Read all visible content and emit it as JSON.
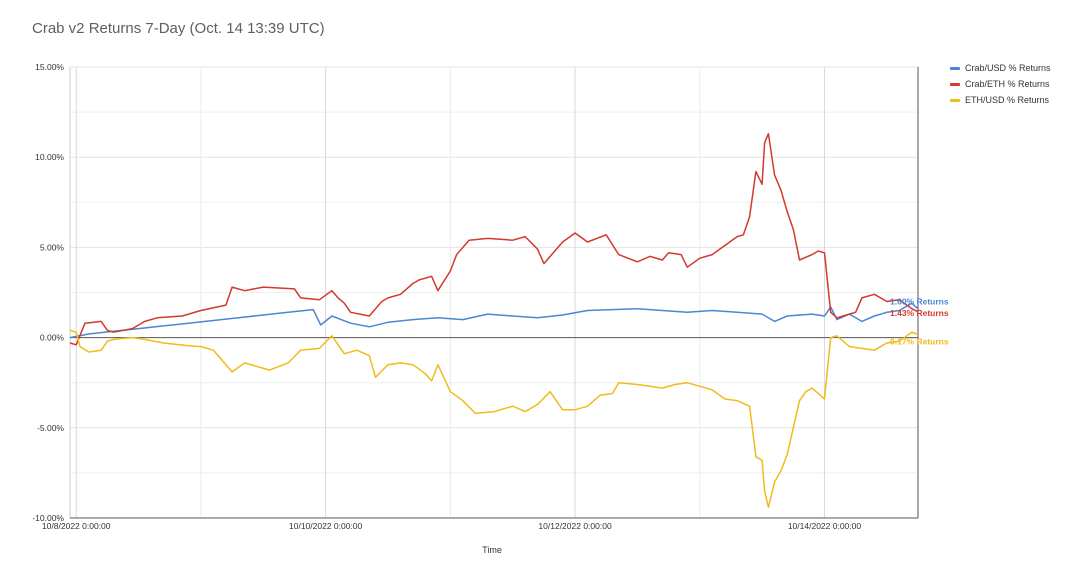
{
  "title": "Crab v2 Returns 7-Day (Oct. 14 13:39 UTC)",
  "chart_data": {
    "type": "line",
    "title": "Crab v2 Returns 7-Day (Oct. 14 13:39 UTC)",
    "xlabel": "Time",
    "ylabel": "",
    "x_range": [
      7.95,
      14.75
    ],
    "ylim": [
      -10,
      15
    ],
    "y_ticks": [
      15,
      10,
      5,
      0,
      -5,
      -10
    ],
    "y_tick_labels": [
      "15.00%",
      "10.00%",
      "5.00%",
      "0.00%",
      "-5.00%",
      "-10.00%"
    ],
    "x_ticks": [
      8,
      10,
      12,
      14
    ],
    "x_tick_labels": [
      "10/8/2022 0:00:00",
      "10/10/2022 0:00:00",
      "10/12/2022 0:00:00",
      "10/14/2022 0:00:00"
    ],
    "grid": true,
    "legend_position": "top-right",
    "series": [
      {
        "name": "Crab/USD % Returns",
        "color": "#4a86d4",
        "end_label": "1.60% Returns",
        "points": [
          [
            7.95,
            0.0
          ],
          [
            8.1,
            0.2
          ],
          [
            8.3,
            0.35
          ],
          [
            8.5,
            0.5
          ],
          [
            8.7,
            0.65
          ],
          [
            8.9,
            0.8
          ],
          [
            9.1,
            0.95
          ],
          [
            9.3,
            1.1
          ],
          [
            9.5,
            1.25
          ],
          [
            9.7,
            1.4
          ],
          [
            9.9,
            1.55
          ],
          [
            9.96,
            0.7
          ],
          [
            10.05,
            1.2
          ],
          [
            10.2,
            0.8
          ],
          [
            10.35,
            0.6
          ],
          [
            10.5,
            0.85
          ],
          [
            10.7,
            1.0
          ],
          [
            10.9,
            1.1
          ],
          [
            11.1,
            1.0
          ],
          [
            11.3,
            1.3
          ],
          [
            11.5,
            1.2
          ],
          [
            11.7,
            1.1
          ],
          [
            11.9,
            1.25
          ],
          [
            12.1,
            1.5
          ],
          [
            12.3,
            1.55
          ],
          [
            12.5,
            1.6
          ],
          [
            12.7,
            1.5
          ],
          [
            12.9,
            1.4
          ],
          [
            13.1,
            1.5
          ],
          [
            13.3,
            1.4
          ],
          [
            13.5,
            1.3
          ],
          [
            13.6,
            0.9
          ],
          [
            13.7,
            1.2
          ],
          [
            13.9,
            1.3
          ],
          [
            14.0,
            1.2
          ],
          [
            14.05,
            1.7
          ],
          [
            14.1,
            1.0
          ],
          [
            14.2,
            1.3
          ],
          [
            14.3,
            0.9
          ],
          [
            14.4,
            1.2
          ],
          [
            14.5,
            1.4
          ],
          [
            14.6,
            1.5
          ],
          [
            14.7,
            1.9
          ],
          [
            14.75,
            1.6
          ]
        ]
      },
      {
        "name": "Crab/ETH % Returns",
        "color": "#d2392f",
        "end_label": "1.43% Returns",
        "points": [
          [
            7.95,
            -0.3
          ],
          [
            8.0,
            -0.4
          ],
          [
            8.07,
            0.8
          ],
          [
            8.2,
            0.9
          ],
          [
            8.25,
            0.4
          ],
          [
            8.3,
            0.3
          ],
          [
            8.45,
            0.5
          ],
          [
            8.55,
            0.9
          ],
          [
            8.65,
            1.1
          ],
          [
            8.85,
            1.2
          ],
          [
            9.0,
            1.5
          ],
          [
            9.2,
            1.8
          ],
          [
            9.25,
            2.8
          ],
          [
            9.35,
            2.6
          ],
          [
            9.5,
            2.8
          ],
          [
            9.75,
            2.7
          ],
          [
            9.8,
            2.2
          ],
          [
            9.95,
            2.1
          ],
          [
            10.05,
            2.6
          ],
          [
            10.1,
            2.2
          ],
          [
            10.15,
            1.9
          ],
          [
            10.2,
            1.4
          ],
          [
            10.35,
            1.2
          ],
          [
            10.45,
            2.0
          ],
          [
            10.5,
            2.2
          ],
          [
            10.6,
            2.4
          ],
          [
            10.7,
            3.0
          ],
          [
            10.75,
            3.2
          ],
          [
            10.85,
            3.4
          ],
          [
            10.9,
            2.6
          ],
          [
            11.0,
            3.7
          ],
          [
            11.05,
            4.6
          ],
          [
            11.15,
            5.4
          ],
          [
            11.3,
            5.5
          ],
          [
            11.5,
            5.4
          ],
          [
            11.6,
            5.6
          ],
          [
            11.7,
            4.9
          ],
          [
            11.75,
            4.1
          ],
          [
            11.9,
            5.3
          ],
          [
            12.0,
            5.8
          ],
          [
            12.1,
            5.3
          ],
          [
            12.25,
            5.7
          ],
          [
            12.35,
            4.6
          ],
          [
            12.5,
            4.2
          ],
          [
            12.6,
            4.5
          ],
          [
            12.7,
            4.3
          ],
          [
            12.75,
            4.7
          ],
          [
            12.85,
            4.6
          ],
          [
            12.9,
            3.9
          ],
          [
            13.0,
            4.4
          ],
          [
            13.1,
            4.6
          ],
          [
            13.2,
            5.1
          ],
          [
            13.3,
            5.6
          ],
          [
            13.35,
            5.7
          ],
          [
            13.4,
            6.7
          ],
          [
            13.45,
            9.2
          ],
          [
            13.5,
            8.5
          ],
          [
            13.52,
            10.8
          ],
          [
            13.55,
            11.3
          ],
          [
            13.6,
            9.0
          ],
          [
            13.65,
            8.2
          ],
          [
            13.7,
            7.0
          ],
          [
            13.75,
            6.0
          ],
          [
            13.8,
            4.3
          ],
          [
            13.9,
            4.6
          ],
          [
            13.95,
            4.8
          ],
          [
            14.0,
            4.7
          ],
          [
            14.05,
            1.4
          ],
          [
            14.1,
            1.1
          ],
          [
            14.2,
            1.3
          ],
          [
            14.25,
            1.4
          ],
          [
            14.3,
            2.2
          ],
          [
            14.4,
            2.4
          ],
          [
            14.5,
            2.0
          ],
          [
            14.6,
            2.1
          ],
          [
            14.7,
            1.6
          ],
          [
            14.75,
            1.43
          ]
        ]
      },
      {
        "name": "ETH/USD % Returns",
        "color": "#f1bb1b",
        "end_label": "0.17% Returns",
        "points": [
          [
            7.95,
            0.4
          ],
          [
            8.0,
            0.3
          ],
          [
            8.03,
            -0.5
          ],
          [
            8.1,
            -0.8
          ],
          [
            8.2,
            -0.7
          ],
          [
            8.25,
            -0.2
          ],
          [
            8.3,
            -0.1
          ],
          [
            8.45,
            0.0
          ],
          [
            8.55,
            -0.1
          ],
          [
            8.7,
            -0.3
          ],
          [
            8.9,
            -0.45
          ],
          [
            9.0,
            -0.5
          ],
          [
            9.1,
            -0.7
          ],
          [
            9.25,
            -1.9
          ],
          [
            9.35,
            -1.4
          ],
          [
            9.55,
            -1.8
          ],
          [
            9.7,
            -1.4
          ],
          [
            9.8,
            -0.7
          ],
          [
            9.95,
            -0.6
          ],
          [
            10.05,
            0.1
          ],
          [
            10.15,
            -0.9
          ],
          [
            10.25,
            -0.7
          ],
          [
            10.35,
            -1.0
          ],
          [
            10.4,
            -2.2
          ],
          [
            10.5,
            -1.5
          ],
          [
            10.6,
            -1.4
          ],
          [
            10.7,
            -1.5
          ],
          [
            10.8,
            -2.0
          ],
          [
            10.85,
            -2.4
          ],
          [
            10.9,
            -1.5
          ],
          [
            11.0,
            -3.0
          ],
          [
            11.1,
            -3.5
          ],
          [
            11.2,
            -4.2
          ],
          [
            11.35,
            -4.1
          ],
          [
            11.5,
            -3.8
          ],
          [
            11.6,
            -4.1
          ],
          [
            11.7,
            -3.7
          ],
          [
            11.8,
            -3.0
          ],
          [
            11.9,
            -4.0
          ],
          [
            12.0,
            -4.0
          ],
          [
            12.1,
            -3.8
          ],
          [
            12.2,
            -3.2
          ],
          [
            12.3,
            -3.1
          ],
          [
            12.35,
            -2.5
          ],
          [
            12.5,
            -2.6
          ],
          [
            12.6,
            -2.7
          ],
          [
            12.7,
            -2.8
          ],
          [
            12.8,
            -2.6
          ],
          [
            12.9,
            -2.5
          ],
          [
            13.0,
            -2.7
          ],
          [
            13.1,
            -2.9
          ],
          [
            13.2,
            -3.4
          ],
          [
            13.3,
            -3.5
          ],
          [
            13.4,
            -3.8
          ],
          [
            13.45,
            -6.6
          ],
          [
            13.5,
            -6.8
          ],
          [
            13.52,
            -8.5
          ],
          [
            13.55,
            -9.4
          ],
          [
            13.6,
            -8.0
          ],
          [
            13.65,
            -7.4
          ],
          [
            13.7,
            -6.5
          ],
          [
            13.75,
            -5.0
          ],
          [
            13.8,
            -3.5
          ],
          [
            13.85,
            -3.0
          ],
          [
            13.9,
            -2.8
          ],
          [
            14.0,
            -3.4
          ],
          [
            14.05,
            0.0
          ],
          [
            14.1,
            0.1
          ],
          [
            14.2,
            -0.5
          ],
          [
            14.3,
            -0.6
          ],
          [
            14.4,
            -0.7
          ],
          [
            14.5,
            -0.3
          ],
          [
            14.6,
            -0.2
          ],
          [
            14.7,
            0.3
          ],
          [
            14.75,
            0.17
          ]
        ]
      }
    ]
  }
}
